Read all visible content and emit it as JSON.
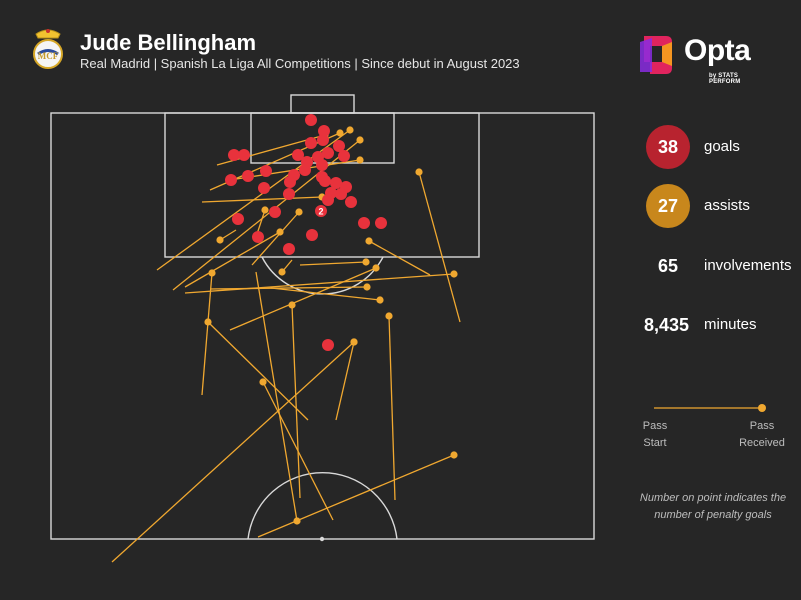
{
  "header": {
    "title": "Jude Bellingham",
    "subtitle": "Real Madrid | Spanish La Liga All Competitions | Since debut in August 2023",
    "crest_icon": "real-madrid-crest-icon"
  },
  "brand": {
    "name": "Opta",
    "tagline": "by STATS PERFORM",
    "logo_icon": "opta-logo-icon",
    "colors": [
      "#e0245e",
      "#f7a21b",
      "#8a2be2"
    ]
  },
  "stats": [
    {
      "value": "38",
      "label": "goals",
      "color": "#b8232f"
    },
    {
      "value": "27",
      "label": "assists",
      "color": "#c8871c"
    },
    {
      "value": "65",
      "label": "involvements",
      "color": ""
    },
    {
      "value": "8,435",
      "label": "minutes",
      "color": ""
    }
  ],
  "legend": {
    "start_label": "Pass\nStart",
    "end_label": "Pass\nReceived"
  },
  "note": "Number on point indicates the number of penalty goals",
  "colors": {
    "background": "#262626",
    "pitch_lines": "#d9d9d9",
    "goal": "#e8323c",
    "assist": "#f0a830"
  },
  "chart_data": {
    "type": "scatter",
    "title": "Jude Bellingham",
    "goals": [
      {
        "x": 311,
        "y": 120
      },
      {
        "x": 324,
        "y": 131
      },
      {
        "x": 323,
        "y": 140
      },
      {
        "x": 311,
        "y": 143
      },
      {
        "x": 339,
        "y": 146
      },
      {
        "x": 234,
        "y": 155
      },
      {
        "x": 244,
        "y": 155
      },
      {
        "x": 298,
        "y": 155
      },
      {
        "x": 318,
        "y": 157
      },
      {
        "x": 328,
        "y": 153
      },
      {
        "x": 344,
        "y": 156
      },
      {
        "x": 322,
        "y": 165
      },
      {
        "x": 305,
        "y": 170
      },
      {
        "x": 294,
        "y": 175
      },
      {
        "x": 266,
        "y": 171
      },
      {
        "x": 248,
        "y": 176
      },
      {
        "x": 231,
        "y": 180
      },
      {
        "x": 322,
        "y": 177
      },
      {
        "x": 336,
        "y": 183
      },
      {
        "x": 346,
        "y": 187
      },
      {
        "x": 290,
        "y": 182
      },
      {
        "x": 325,
        "y": 181
      },
      {
        "x": 264,
        "y": 188
      },
      {
        "x": 331,
        "y": 193
      },
      {
        "x": 341,
        "y": 194
      },
      {
        "x": 289,
        "y": 194
      },
      {
        "x": 351,
        "y": 202
      },
      {
        "x": 275,
        "y": 212
      },
      {
        "x": 238,
        "y": 219
      },
      {
        "x": 364,
        "y": 223
      },
      {
        "x": 381,
        "y": 223
      },
      {
        "x": 258,
        "y": 237
      },
      {
        "x": 312,
        "y": 235
      },
      {
        "x": 289,
        "y": 249
      },
      {
        "x": 328,
        "y": 345
      },
      {
        "x": 328,
        "y": 200
      },
      {
        "x": 307,
        "y": 162
      },
      {
        "x": 321,
        "y": 211,
        "penalties": "2"
      }
    ],
    "assists": [
      {
        "start": [
          157,
          270
        ],
        "end": [
          350,
          130
        ]
      },
      {
        "start": [
          173,
          290
        ],
        "end": [
          360,
          140
        ]
      },
      {
        "start": [
          202,
          395
        ],
        "end": [
          212,
          273
        ]
      },
      {
        "start": [
          236,
          230
        ],
        "end": [
          220,
          240
        ]
      },
      {
        "start": [
          217,
          165
        ],
        "end": [
          325,
          135
        ]
      },
      {
        "start": [
          210,
          190
        ],
        "end": [
          340,
          133
        ]
      },
      {
        "start": [
          230,
          180
        ],
        "end": [
          360,
          160
        ]
      },
      {
        "start": [
          202,
          202
        ],
        "end": [
          322,
          197
        ]
      },
      {
        "start": [
          185,
          287
        ],
        "end": [
          280,
          232
        ]
      },
      {
        "start": [
          252,
          265
        ],
        "end": [
          299,
          212
        ]
      },
      {
        "start": [
          255,
          240
        ],
        "end": [
          265,
          210
        ]
      },
      {
        "start": [
          292,
          260
        ],
        "end": [
          282,
          272
        ]
      },
      {
        "start": [
          300,
          265
        ],
        "end": [
          366,
          262
        ]
      },
      {
        "start": [
          210,
          289
        ],
        "end": [
          367,
          287
        ]
      },
      {
        "start": [
          271,
          288
        ],
        "end": [
          380,
          300
        ]
      },
      {
        "start": [
          185,
          293
        ],
        "end": [
          454,
          274
        ]
      },
      {
        "start": [
          430,
          275
        ],
        "end": [
          369,
          241
        ]
      },
      {
        "start": [
          460,
          322
        ],
        "end": [
          419,
          172
        ]
      },
      {
        "start": [
          230,
          330
        ],
        "end": [
          376,
          268
        ]
      },
      {
        "start": [
          256,
          272
        ],
        "end": [
          297,
          521
        ]
      },
      {
        "start": [
          308,
          420
        ],
        "end": [
          208,
          322
        ]
      },
      {
        "start": [
          333,
          520
        ],
        "end": [
          263,
          382
        ]
      },
      {
        "start": [
          300,
          498
        ],
        "end": [
          292,
          305
        ]
      },
      {
        "start": [
          336,
          420
        ],
        "end": [
          354,
          342
        ]
      },
      {
        "start": [
          395,
          500
        ],
        "end": [
          389,
          316
        ]
      },
      {
        "start": [
          258,
          537
        ],
        "end": [
          454,
          455
        ]
      },
      {
        "start": [
          112,
          562
        ],
        "end": [
          354,
          342
        ]
      }
    ]
  }
}
